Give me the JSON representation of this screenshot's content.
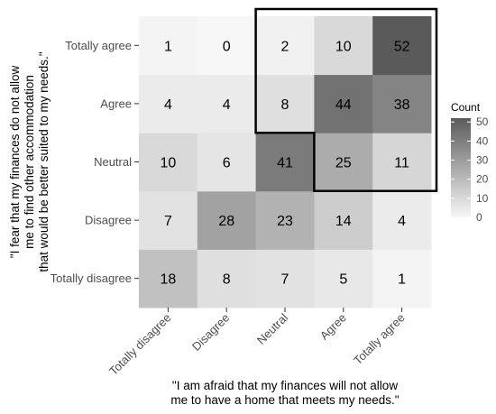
{
  "chart_data": {
    "type": "heatmap",
    "x_categories": [
      "Totally disagree",
      "Disagree",
      "Neutral",
      "Agree",
      "Totally agree"
    ],
    "y_categories": [
      "Totally disagree",
      "Disagree",
      "Neutral",
      "Agree",
      "Totally agree"
    ],
    "values": [
      [
        18,
        8,
        7,
        5,
        1
      ],
      [
        7,
        28,
        23,
        14,
        4
      ],
      [
        10,
        6,
        41,
        25,
        11
      ],
      [
        4,
        4,
        8,
        44,
        38
      ],
      [
        1,
        0,
        2,
        10,
        52
      ]
    ],
    "xlabel_lines": [
      "\"I am afraid that my finances will not allow",
      "me to have a home that meets my needs.\""
    ],
    "ylabel_lines": [
      "\"I fear that my finances do not allow",
      "me to find other accommodation",
      "that would be better suited to my needs.\""
    ],
    "legend": {
      "title": "Count",
      "ticks": [
        0,
        10,
        20,
        30,
        40,
        50
      ],
      "range": [
        0,
        52
      ]
    },
    "colors": {
      "low": "#f7f7f7",
      "high": "#5a5a5a",
      "outline": "#000000"
    },
    "highlight_region": "upper-right agreement cells outlined",
    "grid": false
  }
}
